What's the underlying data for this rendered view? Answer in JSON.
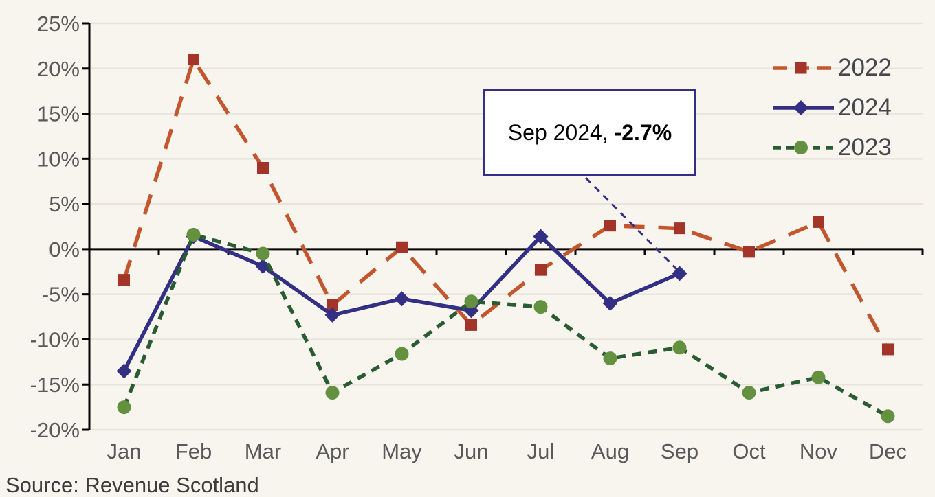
{
  "chart_data": {
    "type": "line",
    "title": "",
    "xlabel": "",
    "ylabel": "",
    "categories": [
      "Jan",
      "Feb",
      "Mar",
      "Apr",
      "May",
      "Jun",
      "Jul",
      "Aug",
      "Sep",
      "Oct",
      "Nov",
      "Dec"
    ],
    "ylim": [
      -20,
      25
    ],
    "ytick_step": 5,
    "ytick_labels": [
      "25%",
      "20%",
      "15%",
      "10%",
      "5%",
      "0%",
      "-5%",
      "-10%",
      "-15%",
      "-20%"
    ],
    "grid": "horizontal",
    "legend_position": "right-top",
    "series": [
      {
        "name": "2022",
        "line_color": "#C4562E",
        "marker_color": "#A23429",
        "marker": "square",
        "line_style": "long-dash",
        "values": [
          -3.4,
          21.0,
          9.0,
          -6.2,
          0.2,
          -8.4,
          -2.3,
          2.6,
          2.3,
          -0.3,
          3.0,
          -11.1
        ]
      },
      {
        "name": "2024",
        "line_color": "#322F85",
        "marker_color": "#322F85",
        "marker": "diamond",
        "line_style": "solid",
        "values": [
          -13.5,
          1.4,
          -1.9,
          -7.3,
          -5.5,
          -6.8,
          1.4,
          -6.0,
          -2.7,
          null,
          null,
          null
        ]
      },
      {
        "name": "2023",
        "line_color": "#2A5C33",
        "marker_color": "#64913F",
        "marker": "circle",
        "line_style": "short-dash",
        "values": [
          -17.5,
          1.6,
          -0.5,
          -15.9,
          -11.6,
          -5.8,
          -6.4,
          -12.1,
          -10.9,
          -15.9,
          -14.2,
          -18.5
        ]
      }
    ]
  },
  "annotation": {
    "label_prefix": "Sep 2024, ",
    "value": "-2.7%",
    "target_series": "2024",
    "target_category": "Sep"
  },
  "caption": "Source: Revenue Scotland",
  "colors": {
    "background": "#F8F5EF",
    "gridline": "#E8E4DD",
    "axis": "#000000",
    "axis_label": "#595959",
    "legend_label": "#46474C",
    "annotation_border": "#322F85",
    "annotation_bg": "#FFFFFF",
    "annotation_text": "#000000",
    "caption_text": "#3C3C3C"
  }
}
